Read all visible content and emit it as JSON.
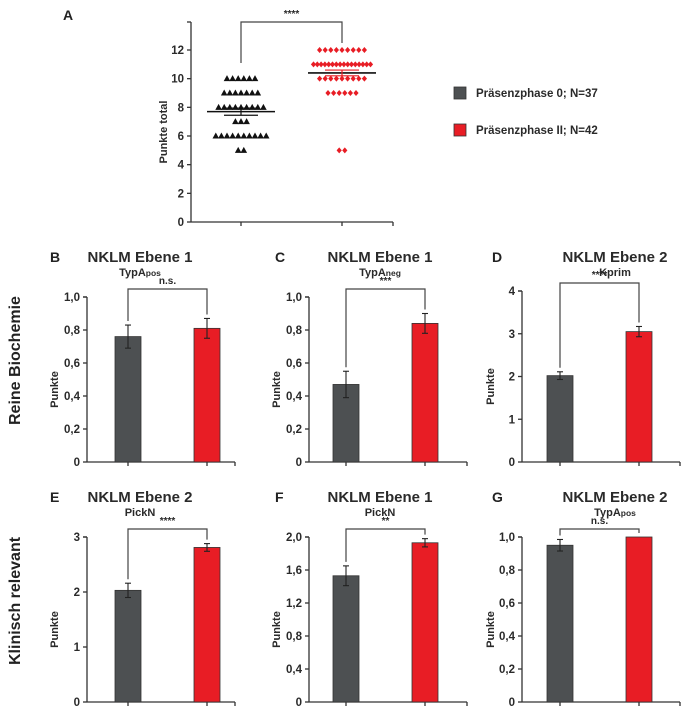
{
  "colors": {
    "group0": "#4d5052",
    "group2": "#e81d25",
    "axis": "#333333",
    "text": "#2a2a2a"
  },
  "legend": {
    "items": [
      {
        "label": "Präsenzphase 0;  N=37",
        "color": "#4d5052"
      },
      {
        "label": "Präsenzphase II;  N=42",
        "color": "#e81d25"
      }
    ],
    "placement": "right of panel A"
  },
  "row_labels": [
    "Reine Biochemie",
    "Klinisch relevant"
  ],
  "chart_data": [
    {
      "panel": "A",
      "type": "scatter",
      "title": "",
      "ylabel": "Punkte total",
      "xlabel": "",
      "ylim": [
        0,
        14
      ],
      "yticks": [
        "0",
        "2",
        "4",
        "6",
        "8",
        "10",
        "12"
      ],
      "yticks_values": [
        0,
        2,
        4,
        6,
        8,
        10,
        12
      ],
      "significance": "****",
      "series": [
        {
          "name": "Präsenzphase 0",
          "marker": "triangle",
          "color": "#111111",
          "points_by_value": [
            {
              "y": 10,
              "count": 6
            },
            {
              "y": 9,
              "count": 7
            },
            {
              "y": 8,
              "count": 9
            },
            {
              "y": 7,
              "count": 3
            },
            {
              "y": 6,
              "count": 10
            },
            {
              "y": 5,
              "count": 2
            }
          ],
          "mean": 7.7,
          "sem": 0.25
        },
        {
          "name": "Präsenzphase II",
          "marker": "diamond",
          "color": "#e81d25",
          "points_by_value": [
            {
              "y": 12,
              "count": 9
            },
            {
              "y": 11,
              "count": 16
            },
            {
              "y": 10,
              "count": 9
            },
            {
              "y": 9,
              "count": 6
            },
            {
              "y": 5,
              "count": 2
            }
          ],
          "mean": 10.4,
          "sem": 0.2
        }
      ]
    },
    {
      "panel": "B",
      "type": "bar",
      "title": "NKLM Ebene 1",
      "subtitle_main": "TypA",
      "subtitle_sub": "pos",
      "ylabel": "Punkte",
      "ylim": [
        0,
        1.0
      ],
      "yticks": [
        "0",
        "0,2",
        "0,4",
        "0,6",
        "0,8",
        "1,0"
      ],
      "yticks_values": [
        0,
        0.2,
        0.4,
        0.6,
        0.8,
        1.0
      ],
      "categories": [
        "Präsenzphase 0",
        "Präsenzphase II"
      ],
      "values": [
        0.76,
        0.81
      ],
      "errors": [
        0.07,
        0.06
      ],
      "significance": "n.s."
    },
    {
      "panel": "C",
      "type": "bar",
      "title": "NKLM Ebene 1",
      "subtitle_main": "TypA",
      "subtitle_sub": "neg",
      "ylabel": "Punkte",
      "ylim": [
        0,
        1.0
      ],
      "yticks": [
        "0",
        "0,2",
        "0,4",
        "0,6",
        "0,8",
        "1,0"
      ],
      "yticks_values": [
        0,
        0.2,
        0.4,
        0.6,
        0.8,
        1.0
      ],
      "categories": [
        "Präsenzphase 0",
        "Präsenzphase II"
      ],
      "values": [
        0.47,
        0.84
      ],
      "errors": [
        0.08,
        0.06
      ],
      "significance": "***"
    },
    {
      "panel": "D",
      "type": "bar",
      "title": "NKLM Ebene 2",
      "subtitle_main": "Kprim",
      "subtitle_sub": "",
      "ylabel": "Punkte",
      "ylim": [
        0,
        4
      ],
      "yticks": [
        "0",
        "1",
        "2",
        "3",
        "4"
      ],
      "yticks_values": [
        0,
        1,
        2,
        3,
        4
      ],
      "categories": [
        "Präsenzphase 0",
        "Präsenzphase II"
      ],
      "values": [
        2.02,
        3.05
      ],
      "errors": [
        0.09,
        0.12
      ],
      "significance": "****"
    },
    {
      "panel": "E",
      "type": "bar",
      "title": "NKLM Ebene 2",
      "subtitle_main": "PickN",
      "subtitle_sub": "",
      "ylabel": "Punkte",
      "ylim": [
        0,
        3
      ],
      "yticks": [
        "0",
        "1",
        "2",
        "3"
      ],
      "yticks_values": [
        0,
        1,
        2,
        3
      ],
      "categories": [
        "Präsenzphase 0",
        "Präsenzphase II"
      ],
      "values": [
        2.03,
        2.81
      ],
      "errors": [
        0.13,
        0.07
      ],
      "significance": "****"
    },
    {
      "panel": "F",
      "type": "bar",
      "title": "NKLM Ebene 1",
      "subtitle_main": "PickN",
      "subtitle_sub": "",
      "ylabel": "Punkte",
      "ylim": [
        0,
        2.0
      ],
      "yticks": [
        "0",
        "0,4",
        "0,8",
        "1,2",
        "1,6",
        "2,0"
      ],
      "yticks_values": [
        0,
        0.4,
        0.8,
        1.2,
        1.6,
        2.0
      ],
      "categories": [
        "Präsenzphase 0",
        "Präsenzphase II"
      ],
      "values": [
        1.53,
        1.93
      ],
      "errors": [
        0.12,
        0.05
      ],
      "significance": "**"
    },
    {
      "panel": "G",
      "type": "bar",
      "title": "NKLM Ebene 2",
      "subtitle_main": "TypA",
      "subtitle_sub": "pos",
      "ylabel": "Punkte",
      "ylim": [
        0,
        1.0
      ],
      "yticks": [
        "0",
        "0,2",
        "0,4",
        "0,6",
        "0,8",
        "1,0"
      ],
      "yticks_values": [
        0,
        0.2,
        0.4,
        0.6,
        0.8,
        1.0
      ],
      "categories": [
        "Präsenzphase 0",
        "Präsenzphase II"
      ],
      "values": [
        0.95,
        1.0
      ],
      "errors": [
        0.035,
        0.0
      ],
      "significance": "n.s."
    }
  ]
}
